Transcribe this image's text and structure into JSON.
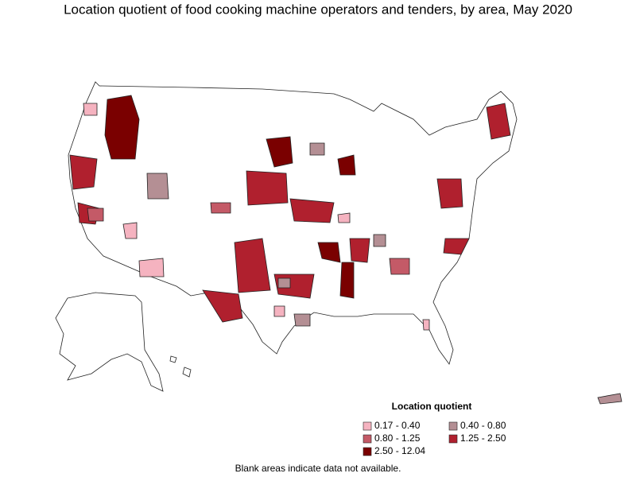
{
  "title": "Location quotient of food cooking machine operators and tenders, by area, May 2020",
  "legend": {
    "title": "Location quotient",
    "items": [
      {
        "label": "0.17 - 0.40",
        "color": "#f5b3c0"
      },
      {
        "label": "0.40 - 0.80",
        "color": "#b48f94"
      },
      {
        "label": "0.80 - 1.25",
        "color": "#c45a67"
      },
      {
        "label": "1.25 - 2.50",
        "color": "#b0202e"
      },
      {
        "label": "2.50 - 12.04",
        "color": "#7a0000"
      }
    ]
  },
  "note": "Blank areas indicate data not available."
}
